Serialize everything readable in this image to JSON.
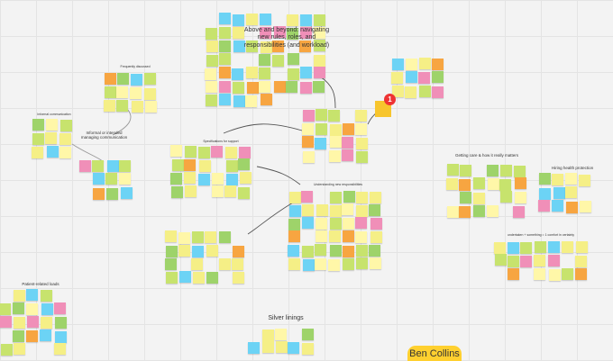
{
  "board": {
    "clusters": [
      {
        "label": "Above and beyond: navigating new rules, roles, and responsibilities (and workload)"
      },
      {
        "label": "Frequently discussed"
      },
      {
        "label": "Informal communication"
      },
      {
        "label": "Informal or intended managing communication"
      },
      {
        "label": "Specifications for support"
      },
      {
        "label": "Understanding new responsibilities"
      },
      {
        "label": "Getting care & how it really matters"
      },
      {
        "label": "Hiring health protection"
      },
      {
        "label": "undertaken + something = 1 comfort in certainty"
      },
      {
        "label": "Patient-related loads"
      },
      {
        "label": "Silver linings"
      }
    ],
    "badge": "1",
    "cursor_label": "Ben Collins"
  }
}
